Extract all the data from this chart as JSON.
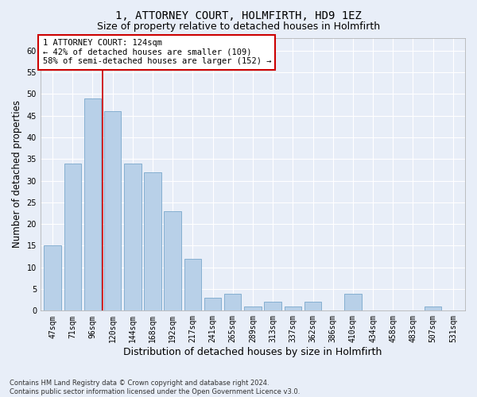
{
  "title": "1, ATTORNEY COURT, HOLMFIRTH, HD9 1EZ",
  "subtitle": "Size of property relative to detached houses in Holmfirth",
  "xlabel": "Distribution of detached houses by size in Holmfirth",
  "ylabel": "Number of detached properties",
  "bar_labels": [
    "47sqm",
    "71sqm",
    "96sqm",
    "120sqm",
    "144sqm",
    "168sqm",
    "192sqm",
    "217sqm",
    "241sqm",
    "265sqm",
    "289sqm",
    "313sqm",
    "337sqm",
    "362sqm",
    "386sqm",
    "410sqm",
    "434sqm",
    "458sqm",
    "483sqm",
    "507sqm",
    "531sqm"
  ],
  "bar_values": [
    15,
    34,
    49,
    46,
    34,
    32,
    23,
    12,
    3,
    4,
    1,
    2,
    1,
    2,
    0,
    4,
    0,
    0,
    0,
    1,
    0
  ],
  "bar_color": "#b8d0e8",
  "bar_edge_color": "#7aa8cc",
  "background_color": "#e8eef8",
  "grid_color": "#ffffff",
  "vline_x": 2.5,
  "vline_color": "#cc0000",
  "ylim_max": 63,
  "yticks": [
    0,
    5,
    10,
    15,
    20,
    25,
    30,
    35,
    40,
    45,
    50,
    55,
    60
  ],
  "annotation_line1": "1 ATTORNEY COURT: 124sqm",
  "annotation_line2": "← 42% of detached houses are smaller (109)",
  "annotation_line3": "58% of semi-detached houses are larger (152) →",
  "annotation_box_facecolor": "#ffffff",
  "annotation_border_color": "#cc0000",
  "footer_line1": "Contains HM Land Registry data © Crown copyright and database right 2024.",
  "footer_line2": "Contains public sector information licensed under the Open Government Licence v3.0.",
  "title_fontsize": 10,
  "subtitle_fontsize": 9,
  "tick_fontsize": 7,
  "ylabel_fontsize": 8.5,
  "xlabel_fontsize": 9,
  "annotation_fontsize": 7.5,
  "footer_fontsize": 6
}
